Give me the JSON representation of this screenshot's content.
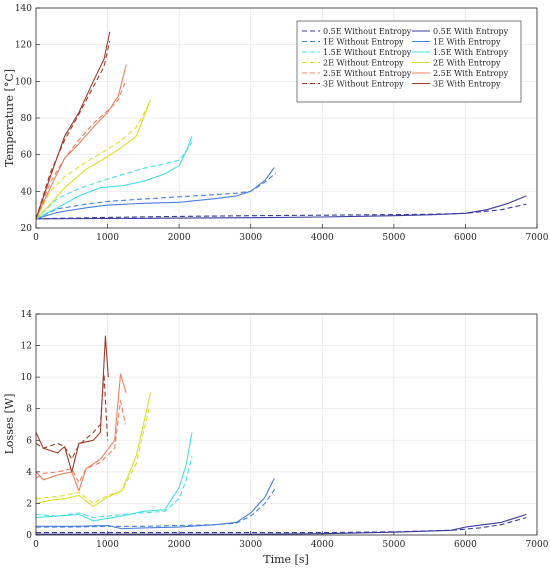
{
  "chart_data": [
    {
      "type": "line",
      "title": "",
      "xlabel": "",
      "ylabel": "Temperature [°C]",
      "xlim": [
        0,
        7000
      ],
      "ylim": [
        20,
        140
      ],
      "xticks": [
        0,
        1000,
        2000,
        3000,
        4000,
        5000,
        6000,
        7000
      ],
      "yticks": [
        20,
        40,
        60,
        80,
        100,
        120,
        140
      ],
      "grid": true,
      "legend": {
        "placement": "top-right",
        "columns": 2
      },
      "series": [
        {
          "name": "0.5E Without Entropy",
          "color": "#3a3a9e",
          "dash": "dashed",
          "x": [
            0,
            1000,
            2000,
            3000,
            4000,
            5000,
            5500,
            6000,
            6500,
            6850
          ],
          "y": [
            25,
            25.8,
            26.3,
            26.7,
            27,
            27.3,
            27.5,
            28,
            30,
            33
          ]
        },
        {
          "name": "0.5E With Entropy",
          "color": "#3a3a9e",
          "dash": "solid",
          "x": [
            0,
            1000,
            2000,
            3000,
            4000,
            5000,
            5500,
            6000,
            6300,
            6600,
            6850
          ],
          "y": [
            25,
            25.2,
            25.4,
            25.6,
            26,
            26.7,
            27.2,
            28,
            30,
            33.5,
            37.5
          ]
        },
        {
          "name": "1E Without Entropy",
          "color": "#4a7fe0",
          "dash": "dashed",
          "x": [
            0,
            300,
            700,
            1000,
            1500,
            2000,
            2500,
            2800,
            3000,
            3200,
            3350
          ],
          "y": [
            25,
            30.5,
            33,
            34.5,
            35.8,
            37,
            38.2,
            39,
            40,
            45,
            50
          ]
        },
        {
          "name": "1E With Entropy",
          "color": "#4a7fe0",
          "dash": "solid",
          "x": [
            0,
            300,
            700,
            1000,
            1500,
            2000,
            2500,
            2800,
            3000,
            3200,
            3330
          ],
          "y": [
            25,
            28.5,
            31,
            32.5,
            33.5,
            34,
            36,
            37.5,
            40,
            46,
            53
          ]
        },
        {
          "name": "1.5E Without Entropy",
          "color": "#46e0e0",
          "dash": "dashed",
          "x": [
            0,
            300,
            600,
            900,
            1200,
            1500,
            1800,
            2000,
            2100,
            2180
          ],
          "y": [
            25,
            36,
            41.5,
            45.5,
            49,
            52.5,
            55,
            57,
            62,
            67
          ]
        },
        {
          "name": "1.5E With Entropy",
          "color": "#46e0e0",
          "dash": "solid",
          "x": [
            0,
            300,
            600,
            900,
            1200,
            1500,
            1800,
            2000,
            2100,
            2180
          ],
          "y": [
            25,
            31,
            37.5,
            42,
            43,
            45.5,
            49.5,
            54,
            62,
            70
          ]
        },
        {
          "name": "2E Without Entropy",
          "color": "#dede2a",
          "dash": "dashed",
          "x": [
            0,
            200,
            400,
            700,
            1000,
            1200,
            1400,
            1500,
            1580
          ],
          "y": [
            25,
            40,
            48,
            56,
            63,
            68,
            75,
            82,
            88
          ]
        },
        {
          "name": "2E With Entropy",
          "color": "#dede2a",
          "dash": "solid",
          "x": [
            0,
            200,
            400,
            700,
            1000,
            1200,
            1400,
            1500,
            1600
          ],
          "y": [
            25,
            33,
            42,
            52,
            59,
            64,
            70,
            80,
            90
          ]
        },
        {
          "name": "2.5E Without Entropy",
          "color": "#f07e5e",
          "dash": "dashed",
          "x": [
            0,
            200,
            400,
            600,
            800,
            1000,
            1150,
            1250
          ],
          "y": [
            25,
            45,
            58,
            68,
            77,
            84,
            90,
            100
          ]
        },
        {
          "name": "2.5E With Entropy",
          "color": "#f07e5e",
          "dash": "solid",
          "x": [
            0,
            200,
            400,
            600,
            800,
            1000,
            1150,
            1260
          ],
          "y": [
            25,
            42,
            58,
            66,
            75,
            83,
            92,
            109
          ]
        },
        {
          "name": "3E Without Entropy",
          "color": "#9e3b2c",
          "dash": "dashed",
          "x": [
            0,
            200,
            400,
            600,
            800,
            950,
            1030
          ],
          "y": [
            25,
            50,
            68,
            82,
            97,
            108,
            122
          ]
        },
        {
          "name": "3E With Entropy",
          "color": "#9e3b2c",
          "dash": "solid",
          "x": [
            0,
            200,
            400,
            600,
            800,
            950,
            1030
          ],
          "y": [
            25,
            48,
            70,
            83,
            100,
            112,
            127
          ]
        }
      ]
    },
    {
      "type": "line",
      "title": "",
      "xlabel": "Time [s]",
      "ylabel": "Losses [W]",
      "xlim": [
        0,
        7000
      ],
      "ylim": [
        0,
        14
      ],
      "xticks": [
        0,
        1000,
        2000,
        3000,
        4000,
        5000,
        6000,
        7000
      ],
      "yticks": [
        0,
        2,
        4,
        6,
        8,
        10,
        12,
        14
      ],
      "grid": true,
      "series": [
        {
          "name": "0.5E Without Entropy",
          "color": "#3a3a9e",
          "dash": "dashed",
          "x": [
            0,
            1000,
            2000,
            3000,
            4000,
            5000,
            5800,
            6200,
            6500,
            6850
          ],
          "y": [
            0.15,
            0.15,
            0.15,
            0.15,
            0.15,
            0.2,
            0.3,
            0.45,
            0.65,
            1.1
          ]
        },
        {
          "name": "0.5E With Entropy",
          "color": "#3a3a9e",
          "dash": "solid",
          "x": [
            0,
            1000,
            2000,
            3000,
            4000,
            5000,
            5800,
            6000,
            6500,
            6850
          ],
          "y": [
            0.05,
            0.05,
            0.05,
            0.05,
            0.08,
            0.18,
            0.3,
            0.5,
            0.8,
            1.3
          ]
        },
        {
          "name": "1E Without Entropy",
          "color": "#4a7fe0",
          "dash": "dashed",
          "x": [
            0,
            500,
            1000,
            1500,
            2000,
            2500,
            2800,
            3000,
            3200,
            3350
          ],
          "y": [
            0.5,
            0.5,
            0.55,
            0.55,
            0.6,
            0.65,
            0.75,
            1.2,
            2,
            3
          ]
        },
        {
          "name": "1E With Entropy",
          "color": "#4a7fe0",
          "dash": "solid",
          "x": [
            0,
            500,
            1000,
            1200,
            1500,
            2000,
            2500,
            2800,
            3000,
            3200,
            3330
          ],
          "y": [
            0.55,
            0.55,
            0.6,
            0.4,
            0.45,
            0.5,
            0.65,
            0.8,
            1.4,
            2.4,
            3.6
          ]
        },
        {
          "name": "1.5E Without Entropy",
          "color": "#46e0e0",
          "dash": "dashed",
          "x": [
            0,
            300,
            600,
            800,
            1200,
            1500,
            1800,
            2000,
            2100,
            2180
          ],
          "y": [
            1.3,
            1.2,
            1.4,
            1.1,
            1.3,
            1.4,
            1.5,
            2.3,
            3.5,
            5
          ]
        },
        {
          "name": "1.5E With Entropy",
          "color": "#46e0e0",
          "dash": "solid",
          "x": [
            0,
            300,
            600,
            800,
            1200,
            1500,
            1800,
            2000,
            2100,
            2180
          ],
          "y": [
            1.1,
            1.2,
            1.3,
            0.9,
            1.2,
            1.5,
            1.6,
            3,
            4.5,
            6.5
          ]
        },
        {
          "name": "2E Without Entropy",
          "color": "#dede2a",
          "dash": "dashed",
          "x": [
            0,
            200,
            400,
            600,
            800,
            1000,
            1200,
            1400,
            1500,
            1580
          ],
          "y": [
            2.3,
            2.4,
            2.5,
            2.7,
            2,
            2.5,
            2.8,
            4.5,
            6.5,
            8
          ]
        },
        {
          "name": "2E With Entropy",
          "color": "#dede2a",
          "dash": "solid",
          "x": [
            0,
            200,
            400,
            600,
            800,
            1000,
            1200,
            1400,
            1500,
            1600
          ],
          "y": [
            2,
            2.2,
            2.3,
            2.5,
            1.8,
            2.4,
            2.8,
            5,
            7,
            9
          ]
        },
        {
          "name": "2.5E Without Entropy",
          "color": "#f07e5e",
          "dash": "dashed",
          "x": [
            0,
            100,
            300,
            500,
            600,
            700,
            900,
            1100,
            1180,
            1250
          ],
          "y": [
            3.6,
            3.9,
            4,
            4.2,
            3.3,
            4.2,
            4.6,
            5.5,
            8.5,
            7
          ]
        },
        {
          "name": "2.5E With Entropy",
          "color": "#f07e5e",
          "dash": "solid",
          "x": [
            0,
            100,
            300,
            500,
            600,
            700,
            900,
            1100,
            1180,
            1260
          ],
          "y": [
            4,
            3.5,
            3.8,
            4,
            2.8,
            4.2,
            4.8,
            6,
            10.2,
            9
          ]
        },
        {
          "name": "3E Without Entropy",
          "color": "#9e3b2c",
          "dash": "dashed",
          "x": [
            0,
            100,
            300,
            400,
            500,
            600,
            800,
            900,
            950,
            1000
          ],
          "y": [
            5.8,
            5.5,
            5.8,
            5.6,
            4.8,
            5.7,
            6.5,
            7,
            10.2,
            6
          ]
        },
        {
          "name": "3E With Entropy",
          "color": "#9e3b2c",
          "dash": "solid",
          "x": [
            0,
            100,
            300,
            400,
            500,
            600,
            800,
            900,
            970,
            1010
          ],
          "y": [
            6.5,
            5.5,
            5.2,
            5.6,
            4,
            5.8,
            6,
            6.5,
            12.6,
            10
          ]
        }
      ]
    }
  ]
}
